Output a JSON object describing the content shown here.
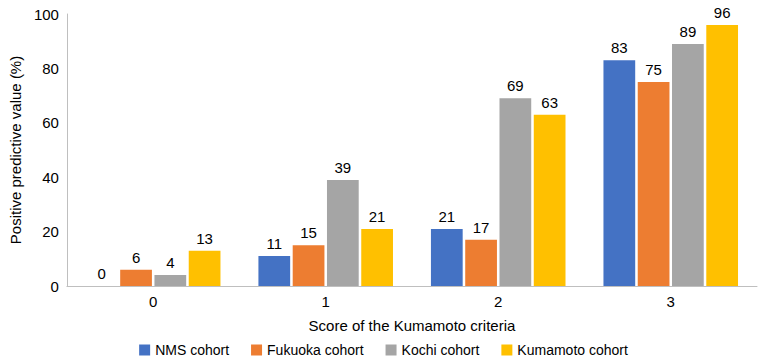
{
  "chart_data": {
    "type": "bar",
    "x_label": "Score of the Kumamoto criteria",
    "y_label": "Positive predictive value (%)",
    "categories": [
      "0",
      "1",
      "2",
      "3"
    ],
    "series": [
      {
        "name": "NMS cohort",
        "color": "#4472c4",
        "values": [
          0,
          11,
          21,
          83
        ]
      },
      {
        "name": "Fukuoka cohort",
        "color": "#ed7d31",
        "values": [
          6,
          15,
          17,
          75
        ]
      },
      {
        "name": "Kochi cohort",
        "color": "#a5a5a5",
        "values": [
          4,
          39,
          69,
          89
        ]
      },
      {
        "name": "Kumamoto cohort",
        "color": "#ffc000",
        "values": [
          13,
          21,
          63,
          96
        ]
      }
    ],
    "ylim": [
      0,
      100
    ],
    "yticks": [
      0,
      20,
      40,
      60,
      80,
      100
    ],
    "grid": false,
    "legend": "bottom",
    "data_labels": true
  }
}
